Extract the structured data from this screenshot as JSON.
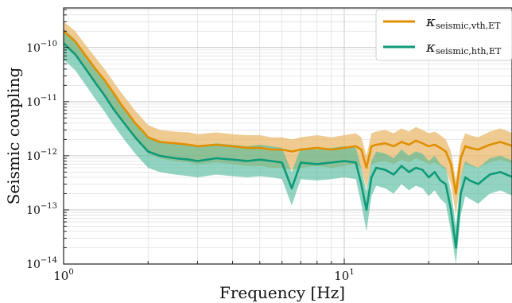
{
  "chart_data": {
    "type": "line",
    "xlabel": "Frequency [Hz]",
    "ylabel": "Seismic coupling",
    "xscale": "log",
    "yscale": "log",
    "xlim": [
      1,
      50
    ],
    "ylim": [
      1e-14,
      5e-10
    ],
    "grid": true,
    "legend_position": "top-right",
    "x_ticks": [
      {
        "value": 1,
        "base": "10",
        "exponent": "0"
      },
      {
        "value": 10,
        "base": "10",
        "exponent": "1"
      }
    ],
    "y_ticks": [
      {
        "value": 1e-10,
        "base": "10",
        "exponent": "−10"
      },
      {
        "value": 1e-11,
        "base": "10",
        "exponent": "−11"
      },
      {
        "value": 1e-12,
        "base": "10",
        "exponent": "−12"
      },
      {
        "value": 1e-13,
        "base": "10",
        "exponent": "−13"
      },
      {
        "value": 1e-14,
        "base": "10",
        "exponent": "−14"
      }
    ],
    "series": [
      {
        "name_symbol": "κ",
        "name_subscript": "seismic,vth,ET",
        "color": "#e08f00",
        "band_color": "#e9b766",
        "x": [
          1.0,
          1.1,
          1.2,
          1.3,
          1.4,
          1.5,
          1.6,
          1.7,
          1.8,
          1.9,
          2.0,
          2.2,
          2.5,
          2.8,
          3.0,
          3.5,
          4.0,
          4.5,
          5.0,
          5.5,
          6.0,
          6.5,
          7.0,
          8.0,
          9.0,
          10.0,
          11.0,
          11.5,
          12.0,
          12.5,
          13.0,
          14.0,
          15.0,
          16.0,
          17.0,
          18.0,
          19.0,
          20.0,
          21.0,
          22.0,
          23.0,
          24.0,
          25.0,
          26.0,
          27.0,
          28.0,
          30.0,
          33.0,
          36.0,
          40.0,
          43.0,
          46.0,
          50.0
        ],
        "y": [
          2e-10,
          1.3e-10,
          7e-11,
          4e-11,
          2.5e-11,
          1.5e-11,
          9e-12,
          6e-12,
          4e-12,
          3e-12,
          2.2e-12,
          1.8e-12,
          1.7e-12,
          1.6e-12,
          1.5e-12,
          1.6e-12,
          1.5e-12,
          1.4e-12,
          1.4e-12,
          1.3e-12,
          1.3e-12,
          1.2e-12,
          1.3e-12,
          1.4e-12,
          1.3e-12,
          1.4e-12,
          1.5e-12,
          1.3e-12,
          6e-13,
          1.5e-12,
          1.6e-12,
          1.7e-12,
          1.5e-12,
          1.8e-12,
          1.6e-12,
          1.9e-12,
          1.7e-12,
          1.5e-12,
          1.6e-12,
          1.4e-12,
          1.2e-12,
          7e-13,
          2e-13,
          9e-13,
          1.5e-12,
          1.4e-12,
          1.3e-12,
          1.6e-12,
          1.8e-12,
          1.5e-12,
          2e-12,
          2.2e-12,
          2.3e-12
        ],
        "lower": [
          1.1e-10,
          7e-11,
          3.8e-11,
          2.2e-11,
          1.3e-11,
          7.5e-12,
          4.5e-12,
          3e-12,
          2e-12,
          1.5e-12,
          1.1e-12,
          9e-13,
          8e-13,
          7.5e-13,
          7e-13,
          7.5e-13,
          7e-13,
          6.5e-13,
          6.5e-13,
          6e-13,
          6e-13,
          5.5e-13,
          6e-13,
          6.5e-13,
          6e-13,
          6.5e-13,
          7e-13,
          6e-13,
          2.5e-13,
          7e-13,
          7.5e-13,
          8e-13,
          7e-13,
          8.5e-13,
          7.5e-13,
          9e-13,
          8e-13,
          7e-13,
          7.5e-13,
          6.5e-13,
          5.5e-13,
          3e-13,
          8e-14,
          4e-13,
          7e-13,
          6.5e-13,
          6e-13,
          7.5e-13,
          8.5e-13,
          7e-13,
          9.5e-13,
          1e-12,
          1.1e-12
        ],
        "upper": [
          3e-10,
          2e-10,
          1.1e-10,
          6.5e-11,
          4e-11,
          2.4e-11,
          1.5e-11,
          1e-11,
          6.8e-12,
          5e-12,
          3.7e-12,
          3e-12,
          2.8e-12,
          2.7e-12,
          2.5e-12,
          2.7e-12,
          2.5e-12,
          2.4e-12,
          2.4e-12,
          2.2e-12,
          2.2e-12,
          2e-12,
          2.2e-12,
          2.4e-12,
          2.2e-12,
          2.4e-12,
          2.6e-12,
          2.2e-12,
          1e-12,
          2.6e-12,
          2.8e-12,
          3e-12,
          2.6e-12,
          3.2e-12,
          2.8e-12,
          3.4e-12,
          3e-12,
          2.6e-12,
          2.8e-12,
          2.4e-12,
          2e-12,
          1.2e-12,
          3.5e-13,
          1.6e-12,
          2.6e-12,
          2.4e-12,
          2.2e-12,
          2.8e-12,
          3.2e-12,
          2.6e-12,
          3.5e-12,
          3.8e-12,
          4e-12
        ]
      },
      {
        "name_symbol": "κ",
        "name_subscript": "seismic,hth,ET",
        "color": "#0f9a77",
        "band_color": "#4fb99b",
        "x": [
          1.0,
          1.1,
          1.2,
          1.3,
          1.4,
          1.5,
          1.6,
          1.7,
          1.8,
          1.9,
          2.0,
          2.2,
          2.5,
          2.8,
          3.0,
          3.5,
          4.0,
          4.5,
          5.0,
          5.5,
          6.0,
          6.5,
          7.0,
          8.0,
          9.0,
          10.0,
          11.0,
          11.5,
          12.0,
          12.5,
          13.0,
          14.0,
          15.0,
          16.0,
          17.0,
          18.0,
          19.0,
          20.0,
          21.0,
          22.0,
          23.0,
          24.0,
          25.0,
          26.0,
          27.0,
          28.0,
          30.0,
          33.0,
          36.0,
          40.0,
          43.0,
          46.0,
          50.0
        ],
        "y": [
          1.2e-10,
          7.5e-11,
          4e-11,
          2.2e-11,
          1.3e-11,
          7.5e-12,
          4.8e-12,
          3.2e-12,
          2.2e-12,
          1.6e-12,
          1.2e-12,
          1e-12,
          9e-13,
          8.5e-13,
          8e-13,
          9e-13,
          8.5e-13,
          8e-13,
          8.5e-13,
          8e-13,
          7.5e-13,
          2.5e-13,
          7.5e-13,
          7e-13,
          7.5e-13,
          8e-13,
          7.5e-13,
          3e-13,
          1e-13,
          4e-13,
          6e-13,
          5.5e-13,
          4.5e-13,
          6.5e-13,
          5e-13,
          6e-13,
          5.5e-13,
          4e-13,
          5e-13,
          3.5e-13,
          3e-13,
          1e-13,
          2e-14,
          2e-13,
          4e-13,
          3.5e-13,
          3e-13,
          4.5e-13,
          5e-13,
          4e-13,
          6e-13,
          7e-13,
          8e-13
        ],
        "lower": [
          6e-11,
          3.8e-11,
          2e-11,
          1.1e-11,
          6.5e-12,
          3.8e-12,
          2.4e-12,
          1.6e-12,
          1.1e-12,
          8e-13,
          6e-13,
          5e-13,
          4.5e-13,
          4.2e-13,
          4e-13,
          4.5e-13,
          4.2e-13,
          4e-13,
          4.2e-13,
          4e-13,
          3.7e-13,
          1.2e-13,
          3.7e-13,
          3.5e-13,
          3.7e-13,
          4e-13,
          3.7e-13,
          1.3e-13,
          4e-14,
          1.8e-13,
          2.8e-13,
          2.5e-13,
          2e-13,
          3e-13,
          2.3e-13,
          2.8e-13,
          2.5e-13,
          1.8e-13,
          2.3e-13,
          1.6e-13,
          1.3e-13,
          4e-14,
          1e-14,
          8e-14,
          1.8e-13,
          1.6e-13,
          1.3e-13,
          2e-13,
          2.3e-13,
          1.8e-13,
          2.8e-13,
          3.2e-13,
          3.6e-13
        ],
        "upper": [
          2.2e-10,
          1.4e-10,
          7.5e-11,
          4.2e-11,
          2.5e-11,
          1.4e-11,
          9e-12,
          6e-12,
          4.2e-12,
          3e-12,
          2.3e-12,
          1.9e-12,
          1.7e-12,
          1.6e-12,
          1.5e-12,
          1.7e-12,
          1.6e-12,
          1.5e-12,
          1.6e-12,
          1.5e-12,
          1.4e-12,
          5e-13,
          1.4e-12,
          1.3e-12,
          1.4e-12,
          1.5e-12,
          1.4e-12,
          6e-13,
          2.2e-13,
          8e-13,
          1.2e-12,
          1.1e-12,
          9e-13,
          1.3e-12,
          1e-12,
          1.2e-12,
          1.1e-12,
          8e-13,
          1e-12,
          7e-13,
          6e-13,
          2.2e-13,
          5e-14,
          4e-13,
          8e-13,
          7e-13,
          6e-13,
          9e-13,
          1e-12,
          8e-13,
          1.2e-12,
          1.4e-12,
          1.6e-12
        ]
      }
    ]
  }
}
